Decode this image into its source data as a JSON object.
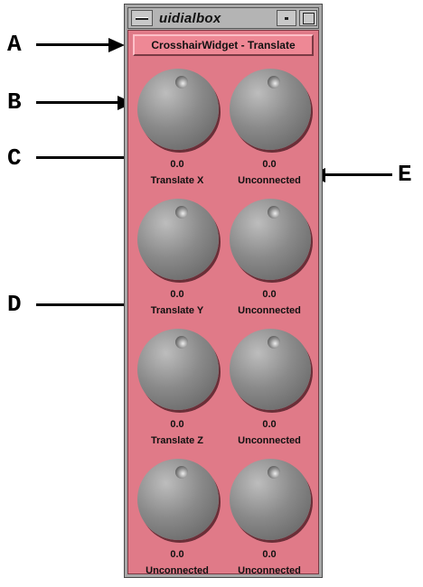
{
  "window": {
    "title": "uidialbox"
  },
  "panel": {
    "title_button": "CrosshairWidget - Translate",
    "dials": [
      {
        "value": "0.0",
        "label": "Translate X"
      },
      {
        "value": "0.0",
        "label": "Unconnected"
      },
      {
        "value": "0.0",
        "label": "Translate Y"
      },
      {
        "value": "0.0",
        "label": "Unconnected"
      },
      {
        "value": "0.0",
        "label": "Translate Z"
      },
      {
        "value": "0.0",
        "label": "Unconnected"
      },
      {
        "value": "0.0",
        "label": "Unconnected"
      },
      {
        "value": "0.0",
        "label": "Unconnected"
      }
    ]
  },
  "callouts": {
    "a": "A",
    "b": "B",
    "c": "C",
    "d": "D",
    "e": "E"
  },
  "colors": {
    "panel": "#e07a88",
    "frame": "#a8a8a8",
    "dial": "#8a8a8a"
  },
  "icons": {
    "window_menu": "window-menu-icon",
    "minimize": "minimize-icon",
    "maximize": "maximize-icon"
  }
}
